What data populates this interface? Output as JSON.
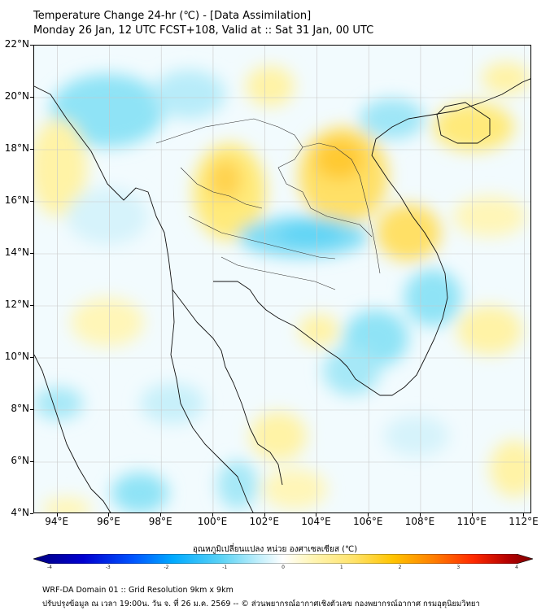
{
  "header": {
    "title_line1": "Temperature Change 24-hr (℃) - [Data Assimilation]",
    "title_line2": "Monday 26 Jan, 12 UTC FCST+108, Valid at :: Sat 31 Jan, 00 UTC"
  },
  "map": {
    "lat_labels": [
      "22°N",
      "20°N",
      "18°N",
      "16°N",
      "14°N",
      "12°N",
      "10°N",
      "8°N",
      "6°N",
      "4°N"
    ],
    "lon_labels": [
      "94°E",
      "96°E",
      "98°E",
      "100°E",
      "102°E",
      "104°E",
      "106°E",
      "108°E",
      "110°E",
      "112°E"
    ],
    "lat_range": [
      4,
      22
    ],
    "lon_range": [
      93.1,
      112.3
    ],
    "gridlines": true
  },
  "colorbar": {
    "label": "อุณหภูมิเปลี่ยนแปลง หน่วย องศาเซลเซียส (℃)",
    "ticks": [
      "-4",
      "-3",
      "-2",
      "-1",
      "0",
      "1",
      "2",
      "3",
      "4"
    ],
    "range": [
      -4,
      4
    ],
    "colors": [
      "#00007f",
      "#0000d0",
      "#0055ff",
      "#00aaff",
      "#5fd4f5",
      "#bfeefb",
      "#ffffff",
      "#fff5b3",
      "#ffe36b",
      "#ffc400",
      "#ff7f00",
      "#ff2a00",
      "#b40000",
      "#7f0000"
    ]
  },
  "footer": {
    "line1": "WRF-DA Domain 01 :: Grid Resolution 9km x 9km",
    "line2": "ปรับปรุงข้อมูล ณ เวลา 19:00น. วัน จ. ที่ 26 ม.ค. 2569 -- © ส่วนพยากรณ์อากาศเชิงตัวเลข กองพยากรณ์อากาศ กรมอุตุนิยมวิทยา"
  }
}
